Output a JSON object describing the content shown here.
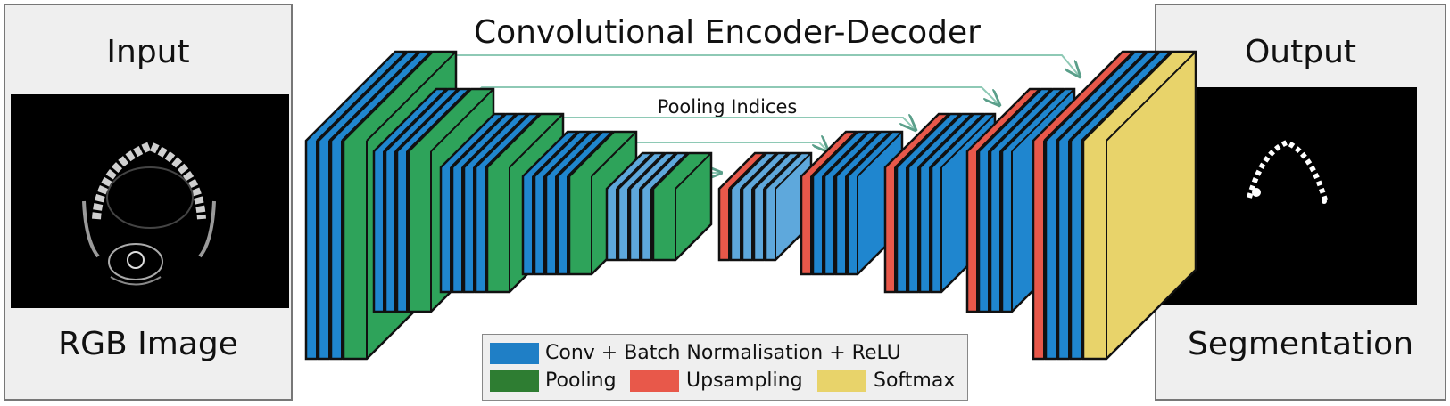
{
  "input_panel": {
    "title": "Input",
    "caption": "RGB Image"
  },
  "output_panel": {
    "title": "Output",
    "caption": "Segmentation"
  },
  "network": {
    "title": "Convolutional Encoder-Decoder",
    "pooling_label": "Pooling Indices"
  },
  "legend": {
    "items": [
      {
        "label": "Conv + Batch Normalisation + ReLU",
        "color": "#1f7fc6"
      },
      {
        "label": "Pooling",
        "color": "#2e7d32"
      },
      {
        "label": "Upsampling",
        "color": "#e8584a"
      },
      {
        "label": "Softmax",
        "color": "#e8d36a"
      }
    ]
  },
  "colors": {
    "conv": "#1f86cf",
    "conv_light": "#5ea8dc",
    "pool": "#2ea35a",
    "upsample": "#e8584a",
    "softmax": "#e8d36a",
    "arrow": "#8ec9b5"
  }
}
